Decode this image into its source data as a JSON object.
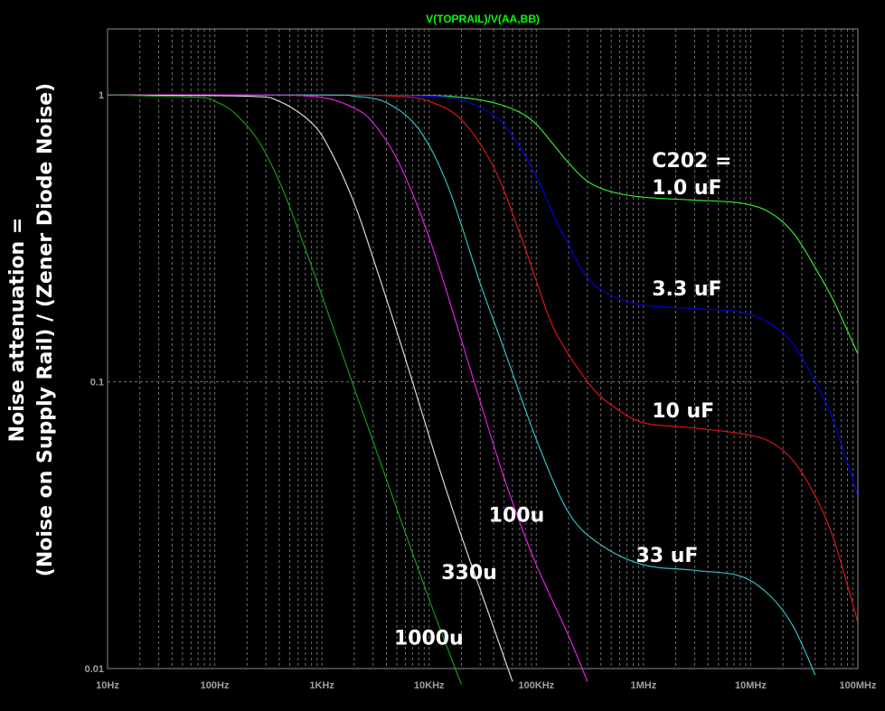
{
  "chart_data": {
    "type": "line",
    "title": "V(TOPRAIL)/V(AA,BB)",
    "ylabel_lines": [
      "Noise attenuation =",
      "(Noise on Supply Rail) / (Zener Diode Noise)"
    ],
    "xlabel": "",
    "x_scale": "log",
    "y_scale": "log",
    "xlim": [
      10,
      100000000
    ],
    "ylim": [
      0.01,
      1.7
    ],
    "x_ticks": [
      "10Hz",
      "100Hz",
      "1KHz",
      "10KHz",
      "100KHz",
      "1MHz",
      "10MHz",
      "100MHz"
    ],
    "y_ticks": [
      "1",
      "0.1",
      "0.01"
    ],
    "grid": true,
    "colors": {
      "background": "#000000",
      "axes": "#8c8c8c",
      "grid": "#6e6e6e",
      "title": "#00ff00",
      "tick_text": "#a0a0a0",
      "annotation": "#ffffff"
    },
    "series": [
      {
        "label": "C202 = 1.0 uF",
        "color": "#33e833",
        "x": [
          10,
          1000,
          10000,
          20000,
          40000,
          70000,
          100000,
          150000,
          200000,
          300000,
          500000,
          1000000,
          3000000,
          8000000,
          15000000,
          25000000,
          40000000,
          60000000,
          100000000
        ],
        "y": [
          1.0,
          1.0,
          0.995,
          0.98,
          0.94,
          0.87,
          0.79,
          0.66,
          0.58,
          0.5,
          0.46,
          0.44,
          0.43,
          0.42,
          0.39,
          0.33,
          0.25,
          0.19,
          0.125
        ]
      },
      {
        "label": "3.3 uF",
        "color": "#0000dd",
        "x": [
          10,
          1000,
          10000,
          20000,
          40000,
          60000,
          100000,
          150000,
          200000,
          300000,
          500000,
          1000000,
          3000000,
          8000000,
          15000000,
          25000000,
          40000000,
          60000000,
          100000000
        ],
        "y": [
          1.0,
          1.0,
          0.99,
          0.96,
          0.85,
          0.72,
          0.52,
          0.37,
          0.3,
          0.23,
          0.2,
          0.185,
          0.18,
          0.175,
          0.16,
          0.135,
          0.1,
          0.072,
          0.04
        ]
      },
      {
        "label": "10 uF",
        "color": "#dd1515",
        "x": [
          10,
          1000,
          5000,
          10000,
          20000,
          40000,
          70000,
          100000,
          150000,
          300000,
          500000,
          1000000,
          3000000,
          8000000,
          15000000,
          25000000,
          40000000,
          60000000,
          100000000
        ],
        "y": [
          1.0,
          1.0,
          0.99,
          0.95,
          0.82,
          0.56,
          0.33,
          0.225,
          0.15,
          0.1,
          0.083,
          0.072,
          0.069,
          0.066,
          0.062,
          0.053,
          0.04,
          0.028,
          0.0145
        ]
      },
      {
        "label": "33 uF",
        "color": "#30c0c0",
        "x": [
          10,
          1000,
          2000,
          4000,
          8000,
          15000,
          30000,
          50000,
          100000,
          200000,
          400000,
          1000000,
          3000000,
          8000000,
          15000000,
          25000000,
          40000000
        ],
        "y": [
          1.0,
          1.0,
          0.99,
          0.94,
          0.76,
          0.48,
          0.22,
          0.13,
          0.063,
          0.035,
          0.027,
          0.023,
          0.022,
          0.021,
          0.018,
          0.014,
          0.0095
        ]
      },
      {
        "label": "100u",
        "color": "#e020e0",
        "x": [
          10,
          300,
          1000,
          2000,
          3000,
          5000,
          8000,
          12000,
          20000,
          40000,
          60000,
          100000,
          200000,
          300000
        ],
        "y": [
          1.0,
          1.0,
          0.98,
          0.9,
          0.8,
          0.6,
          0.4,
          0.26,
          0.14,
          0.06,
          0.038,
          0.023,
          0.013,
          0.009
        ]
      },
      {
        "label": "330u",
        "color": "#d8d8d8",
        "x": [
          10,
          200,
          400,
          800,
          1200,
          2000,
          3000,
          5000,
          8000,
          12000,
          20000,
          35000,
          60000
        ],
        "y": [
          1.0,
          0.99,
          0.95,
          0.8,
          0.64,
          0.42,
          0.27,
          0.15,
          0.085,
          0.052,
          0.029,
          0.016,
          0.009
        ]
      },
      {
        "label": "1000u",
        "color": "#159915",
        "x": [
          10,
          70,
          100,
          150,
          250,
          400,
          600,
          1000,
          2000,
          3000,
          5000,
          8000,
          12000,
          20000
        ],
        "y": [
          1.0,
          0.98,
          0.95,
          0.87,
          0.7,
          0.5,
          0.34,
          0.2,
          0.095,
          0.062,
          0.036,
          0.022,
          0.0145,
          0.0088
        ]
      }
    ],
    "annotations": [
      {
        "text": "C202 =",
        "x": 1200000,
        "y": 0.56
      },
      {
        "text": "1.0 uF",
        "x": 1200000,
        "y": 0.45
      },
      {
        "text": "3.3 uF",
        "x": 1200000,
        "y": 0.2
      },
      {
        "text": "10 uF",
        "x": 1200000,
        "y": 0.075
      },
      {
        "text": "33 uF",
        "x": 850000,
        "y": 0.0235
      },
      {
        "text": "100u",
        "x": 36000,
        "y": 0.0325
      },
      {
        "text": "330u",
        "x": 13000,
        "y": 0.0205
      },
      {
        "text": "1000u",
        "x": 4700,
        "y": 0.0121
      }
    ]
  }
}
